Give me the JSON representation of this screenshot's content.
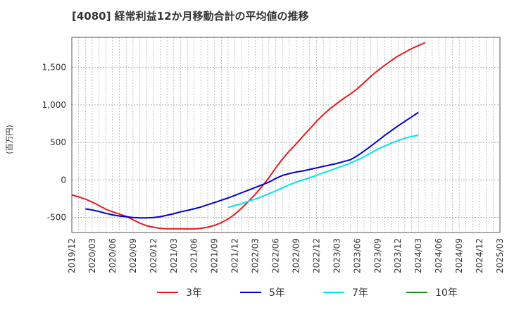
{
  "chart_data": {
    "type": "line",
    "title": "[4080]  経常利益12か月移動合計の平均値の推移",
    "ylabel": "(百万円)",
    "xlabel": "",
    "ylim": [
      -700,
      1900
    ],
    "y_ticks": [
      -500,
      0,
      500,
      1000,
      1500
    ],
    "y_tick_labels": [
      "-500",
      "0",
      "500",
      "1,000",
      "1,500"
    ],
    "x_tick_labels": [
      "2019/12",
      "2020/03",
      "2020/06",
      "2020/09",
      "2020/12",
      "2021/03",
      "2021/06",
      "2021/09",
      "2021/12",
      "2022/03",
      "2022/06",
      "2022/09",
      "2022/12",
      "2023/03",
      "2023/06",
      "2023/09",
      "2023/12",
      "2024/03",
      "2024/06",
      "2024/09",
      "2024/12",
      "2025/03"
    ],
    "grid": true,
    "legend_position": "bottom",
    "series": [
      {
        "name": "3年",
        "color": "#e41a1c",
        "values": [
          [
            0,
            -200
          ],
          [
            1,
            -225
          ],
          [
            2,
            -255
          ],
          [
            3,
            -295
          ],
          [
            4,
            -340
          ],
          [
            5,
            -390
          ],
          [
            6,
            -425
          ],
          [
            7,
            -455
          ],
          [
            8,
            -485
          ],
          [
            9,
            -530
          ],
          [
            10,
            -575
          ],
          [
            11,
            -610
          ],
          [
            12,
            -630
          ],
          [
            13,
            -645
          ],
          [
            14,
            -650
          ],
          [
            15,
            -650
          ],
          [
            16,
            -650
          ],
          [
            17,
            -652
          ],
          [
            18,
            -652
          ],
          [
            19,
            -645
          ],
          [
            20,
            -630
          ],
          [
            21,
            -605
          ],
          [
            22,
            -570
          ],
          [
            23,
            -520
          ],
          [
            24,
            -455
          ],
          [
            25,
            -375
          ],
          [
            26,
            -285
          ],
          [
            27,
            -190
          ],
          [
            28,
            -85
          ],
          [
            29,
            30
          ],
          [
            30,
            160
          ],
          [
            31,
            280
          ],
          [
            32,
            385
          ],
          [
            33,
            480
          ],
          [
            34,
            580
          ],
          [
            35,
            680
          ],
          [
            36,
            780
          ],
          [
            37,
            870
          ],
          [
            38,
            950
          ],
          [
            39,
            1020
          ],
          [
            40,
            1085
          ],
          [
            41,
            1145
          ],
          [
            42,
            1215
          ],
          [
            43,
            1295
          ],
          [
            44,
            1380
          ],
          [
            45,
            1455
          ],
          [
            46,
            1525
          ],
          [
            47,
            1590
          ],
          [
            48,
            1650
          ],
          [
            49,
            1700
          ],
          [
            50,
            1750
          ],
          [
            51,
            1790
          ],
          [
            52,
            1830
          ]
        ]
      },
      {
        "name": "5年",
        "color": "#0000cc",
        "values": [
          [
            2,
            -385
          ],
          [
            3,
            -400
          ],
          [
            4,
            -420
          ],
          [
            5,
            -445
          ],
          [
            6,
            -465
          ],
          [
            7,
            -480
          ],
          [
            8,
            -490
          ],
          [
            9,
            -500
          ],
          [
            10,
            -505
          ],
          [
            11,
            -505
          ],
          [
            12,
            -500
          ],
          [
            13,
            -490
          ],
          [
            14,
            -470
          ],
          [
            15,
            -450
          ],
          [
            16,
            -425
          ],
          [
            17,
            -405
          ],
          [
            18,
            -385
          ],
          [
            19,
            -360
          ],
          [
            20,
            -330
          ],
          [
            21,
            -300
          ],
          [
            22,
            -270
          ],
          [
            23,
            -240
          ],
          [
            24,
            -205
          ],
          [
            25,
            -170
          ],
          [
            26,
            -135
          ],
          [
            27,
            -100
          ],
          [
            28,
            -65
          ],
          [
            29,
            -30
          ],
          [
            30,
            20
          ],
          [
            31,
            60
          ],
          [
            32,
            85
          ],
          [
            33,
            105
          ],
          [
            34,
            120
          ],
          [
            35,
            140
          ],
          [
            36,
            160
          ],
          [
            37,
            180
          ],
          [
            38,
            200
          ],
          [
            39,
            220
          ],
          [
            40,
            245
          ],
          [
            41,
            270
          ],
          [
            42,
            320
          ],
          [
            43,
            385
          ],
          [
            44,
            450
          ],
          [
            45,
            520
          ],
          [
            46,
            590
          ],
          [
            47,
            655
          ],
          [
            48,
            720
          ],
          [
            49,
            780
          ],
          [
            50,
            840
          ],
          [
            51,
            900
          ]
        ]
      },
      {
        "name": "7年",
        "color": "#00e5ee",
        "values": [
          [
            23,
            -365
          ],
          [
            24,
            -340
          ],
          [
            25,
            -315
          ],
          [
            26,
            -285
          ],
          [
            27,
            -255
          ],
          [
            28,
            -220
          ],
          [
            29,
            -185
          ],
          [
            30,
            -145
          ],
          [
            31,
            -105
          ],
          [
            32,
            -65
          ],
          [
            33,
            -30
          ],
          [
            34,
            0
          ],
          [
            35,
            30
          ],
          [
            36,
            60
          ],
          [
            37,
            95
          ],
          [
            38,
            125
          ],
          [
            39,
            160
          ],
          [
            40,
            190
          ],
          [
            41,
            225
          ],
          [
            42,
            265
          ],
          [
            43,
            310
          ],
          [
            44,
            360
          ],
          [
            45,
            410
          ],
          [
            46,
            450
          ],
          [
            47,
            490
          ],
          [
            48,
            525
          ],
          [
            49,
            555
          ],
          [
            50,
            580
          ],
          [
            51,
            595
          ]
        ]
      },
      {
        "name": "10年",
        "color": "#228b22",
        "values": []
      }
    ]
  }
}
